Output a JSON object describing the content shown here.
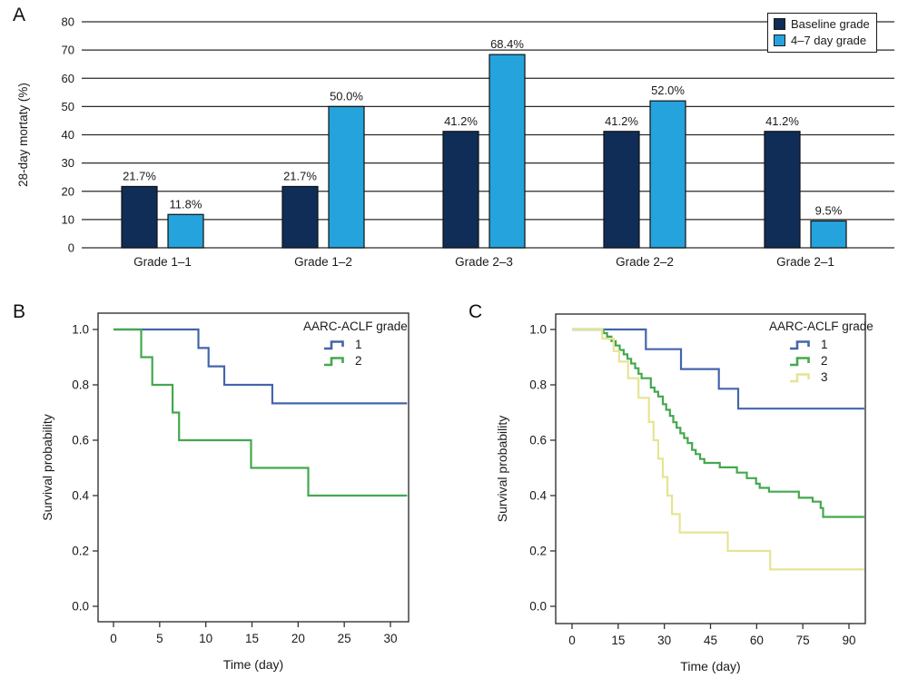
{
  "panels": {
    "a": "A",
    "b": "B",
    "c": "C"
  },
  "chart_data": [
    {
      "type": "bar",
      "panel": "A",
      "categories": [
        "Grade 1–1",
        "Grade 1–2",
        "Grade 2–3",
        "Grade 2–2",
        "Grade 2–1"
      ],
      "series": [
        {
          "name": "Baseline grade",
          "color": "#0F2D56",
          "values": [
            21.7,
            21.7,
            41.2,
            41.2,
            41.2
          ],
          "labels": [
            "21.7%",
            "21.7%",
            "41.2%",
            "41.2%",
            "41.2%"
          ]
        },
        {
          "name": "4–7 day grade",
          "color": "#25A3DD",
          "values": [
            11.8,
            50.0,
            68.4,
            52.0,
            9.5
          ],
          "labels": [
            "11.8%",
            "50.0%",
            "68.4%",
            "52.0%",
            "9.5%"
          ]
        }
      ],
      "xlabel": "",
      "ylabel": "28-day mortaty (%)",
      "ylim": [
        0,
        80
      ],
      "yticks": [
        0,
        10,
        20,
        30,
        40,
        50,
        60,
        70,
        80
      ],
      "grid": "horizontal",
      "legend_position": "top-right"
    },
    {
      "type": "line",
      "subtype": "kaplan-meier-step",
      "panel": "B",
      "xlabel": "Time (day)",
      "ylabel": "Survival probability",
      "xlim": [
        0,
        32
      ],
      "ylim": [
        0,
        1.05
      ],
      "xticks": [
        0,
        5,
        10,
        15,
        20,
        25,
        30
      ],
      "yticks": [
        "0.0",
        "0.2",
        "0.4",
        "0.6",
        "0.8",
        "1.0"
      ],
      "grid": "off",
      "legend": {
        "title": "AARC-ACLF grade",
        "position": "top-right-inside"
      },
      "series": [
        {
          "name": "1",
          "color": "#4465AC",
          "points": [
            [
              0,
              1.0
            ],
            [
              9.2,
              0.933
            ],
            [
              10.3,
              0.867
            ],
            [
              12,
              0.8
            ],
            [
              17.2,
              0.733
            ],
            [
              31.8,
              0.733
            ]
          ]
        },
        {
          "name": "2",
          "color": "#43A84E",
          "points": [
            [
              0,
              1.0
            ],
            [
              3,
              0.9
            ],
            [
              4.2,
              0.8
            ],
            [
              6.4,
              0.7
            ],
            [
              7.1,
              0.6
            ],
            [
              14.9,
              0.5
            ],
            [
              21.1,
              0.4
            ],
            [
              31.8,
              0.4
            ]
          ]
        }
      ]
    },
    {
      "type": "line",
      "subtype": "kaplan-meier-step",
      "panel": "C",
      "xlabel": "Time (day)",
      "ylabel": "Survival probability",
      "xlim": [
        0,
        95
      ],
      "ylim": [
        0,
        1.05
      ],
      "xticks": [
        0,
        15,
        30,
        45,
        60,
        75,
        90
      ],
      "yticks": [
        "0.0",
        "0.2",
        "0.4",
        "0.6",
        "0.8",
        "1.0"
      ],
      "grid": "off",
      "legend": {
        "title": "AARC-ACLF grade",
        "position": "top-right-inside"
      },
      "series": [
        {
          "name": "1",
          "color": "#4465AC",
          "points": [
            [
              0,
              1.0
            ],
            [
              24,
              0.929
            ],
            [
              35.4,
              0.857
            ],
            [
              47.7,
              0.786
            ],
            [
              54,
              0.714
            ],
            [
              95,
              0.714
            ]
          ]
        },
        {
          "name": "2",
          "color": "#43A84E",
          "points": [
            [
              0,
              1.0
            ],
            [
              10.2,
              0.987
            ],
            [
              11.4,
              0.974
            ],
            [
              12.8,
              0.958
            ],
            [
              14.2,
              0.942
            ],
            [
              15.5,
              0.926
            ],
            [
              16.8,
              0.91
            ],
            [
              18,
              0.894
            ],
            [
              19.2,
              0.877
            ],
            [
              20.5,
              0.86
            ],
            [
              21.6,
              0.84
            ],
            [
              22.6,
              0.824
            ],
            [
              25.6,
              0.79
            ],
            [
              26.8,
              0.775
            ],
            [
              28,
              0.758
            ],
            [
              29.5,
              0.73
            ],
            [
              30.6,
              0.71
            ],
            [
              31.8,
              0.688
            ],
            [
              32.9,
              0.665
            ],
            [
              34,
              0.645
            ],
            [
              35.2,
              0.625
            ],
            [
              36.4,
              0.608
            ],
            [
              37.6,
              0.59
            ],
            [
              39,
              0.565
            ],
            [
              40.2,
              0.55
            ],
            [
              41.6,
              0.532
            ],
            [
              43,
              0.518
            ],
            [
              48,
              0.502
            ],
            [
              53.6,
              0.483
            ],
            [
              56.8,
              0.463
            ],
            [
              59.8,
              0.443
            ],
            [
              61,
              0.428
            ],
            [
              64,
              0.414
            ],
            [
              73.7,
              0.392
            ],
            [
              78.2,
              0.378
            ],
            [
              80.8,
              0.355
            ],
            [
              81.6,
              0.323
            ],
            [
              95,
              0.323
            ]
          ]
        },
        {
          "name": "3",
          "color": "#E6E494",
          "points": [
            [
              0,
              1.0
            ],
            [
              9.8,
              0.967
            ],
            [
              13.5,
              0.922
            ],
            [
              15.3,
              0.884
            ],
            [
              18.2,
              0.824
            ],
            [
              21.6,
              0.753
            ],
            [
              25,
              0.666
            ],
            [
              26.5,
              0.6
            ],
            [
              28,
              0.533
            ],
            [
              29.5,
              0.467
            ],
            [
              31,
              0.4
            ],
            [
              32.5,
              0.333
            ],
            [
              35,
              0.267
            ],
            [
              50.6,
              0.2
            ],
            [
              64.4,
              0.133
            ],
            [
              95,
              0.133
            ]
          ]
        }
      ]
    }
  ]
}
